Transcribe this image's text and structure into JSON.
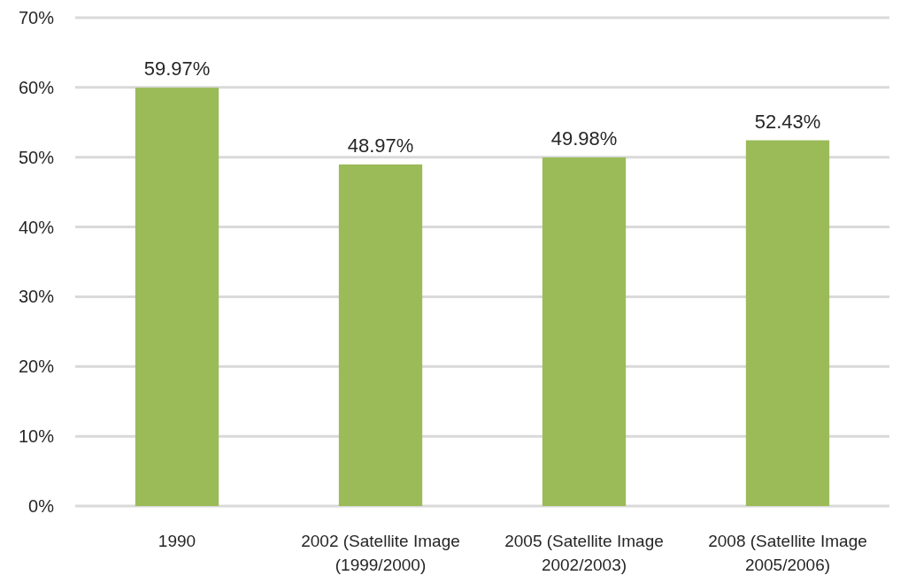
{
  "chart_data": {
    "type": "bar",
    "categories": [
      "1990",
      "2002 (Satellite Image (1999/2000)",
      "2005 (Satellite Image 2002/2003)",
      "2008 (Satellite Image 2005/2006)"
    ],
    "values": [
      59.97,
      48.97,
      49.98,
      52.43
    ],
    "value_labels": [
      "59.97%",
      "48.97%",
      "49.98%",
      "52.43%"
    ],
    "color": "#9bbb59",
    "ylim": [
      0,
      70
    ],
    "yticks": [
      {
        "value": 0,
        "label": "0%"
      },
      {
        "value": 10,
        "label": "10%"
      },
      {
        "value": 20,
        "label": "20%"
      },
      {
        "value": 30,
        "label": "30%"
      },
      {
        "value": 40,
        "label": "40%"
      },
      {
        "value": 50,
        "label": "50%"
      },
      {
        "value": 60,
        "label": "60%"
      },
      {
        "value": 70,
        "label": "70%"
      }
    ],
    "grid": "y"
  }
}
